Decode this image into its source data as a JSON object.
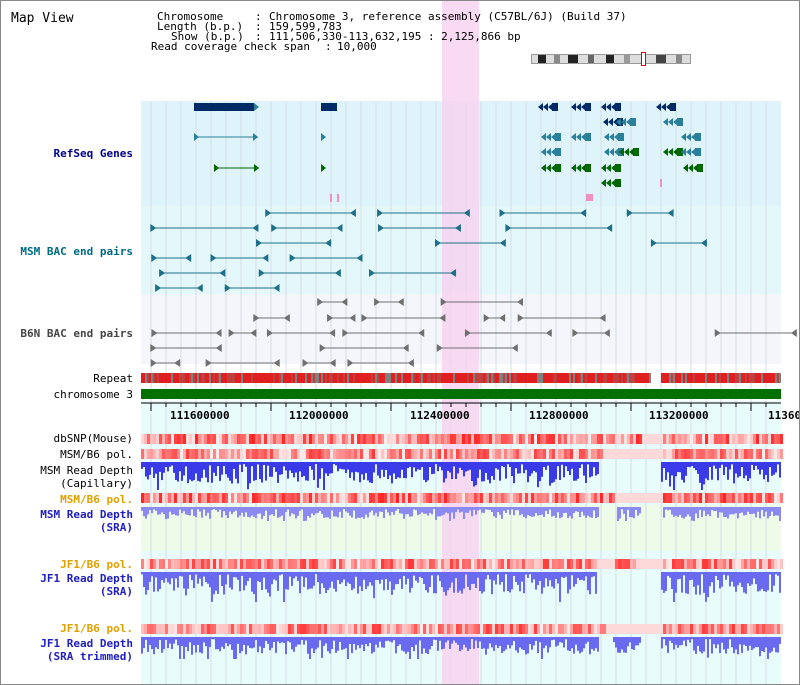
{
  "view": {
    "title": "Map View"
  },
  "header": {
    "chromosome_key": "Chromosome",
    "chromosome_value": "Chromosome 3, reference assembly (C57BL/6J) (Build 37)",
    "length_key": "Length (b.p.)",
    "length_value": "159,599,783",
    "show_key": "Show (b.p.)",
    "show_value": "111,506,330-113,632,195 : 2,125,866 bp",
    "coverage_key": "Read coverage check span",
    "coverage_value": "10,000"
  },
  "tracks": {
    "refseq": "RefSeq Genes",
    "msm_bac": "MSM BAC end pairs",
    "b6n_bac": "B6N BAC end pairs",
    "repeat": "Repeat",
    "chromosome": "chromosome 3",
    "dbsnp": "dbSNP(Mouse)",
    "msm_b6_pol": "MSM/B6 pol.",
    "msm_depth_cap_1": "MSM Read Depth",
    "msm_depth_cap_2": "(Capillary)",
    "msm_b6_pol_sra": "MSM/B6 pol.",
    "msm_depth_sra_1": "MSM Read Depth",
    "msm_depth_sra_2": "(SRA)",
    "jf1_b6_pol": "JF1/B6 pol.",
    "jf1_depth_sra_1": "JF1 Read Depth",
    "jf1_depth_sra_2": "(SRA)",
    "jf1_b6_pol_trim": "JF1/B6 pol.",
    "jf1_depth_trim_1": "JF1 Read Depth",
    "jf1_depth_trim_2": "(SRA trimmed)"
  },
  "axis": {
    "ticks": [
      "111600000",
      "112000000",
      "112400000",
      "112800000",
      "113200000",
      "11360"
    ]
  },
  "colors": {
    "refseq_bg": "#dff3fb",
    "bac_bg": "#e4f8fb",
    "highlight": "#f7d3f0",
    "navy": "#002a66",
    "teal": "#2a7f99",
    "green": "#006600",
    "repeat_red": "#e02020",
    "chrom_green": "#007000",
    "depth_blue": "#6a6af0"
  }
}
